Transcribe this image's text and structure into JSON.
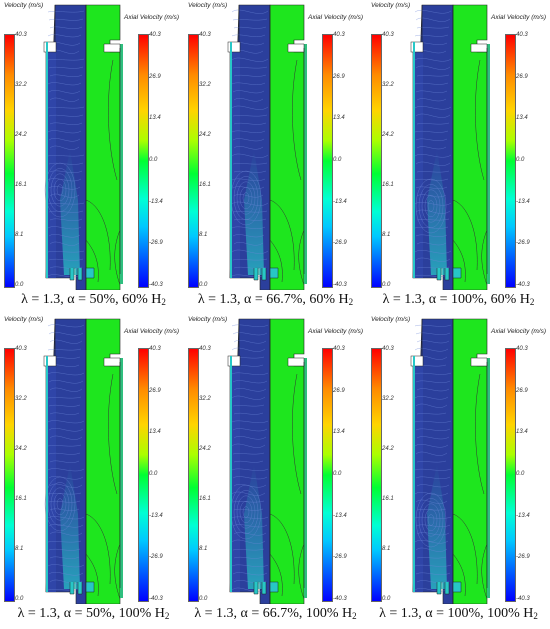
{
  "colorbar_labels": {
    "velocity_title": "Velocity (m/s)",
    "axial_title": "Axial Velocity (m/s)",
    "velocity_ticks": [
      "40.3",
      "32.2",
      "24.2",
      "16.1",
      "8.1",
      "0.0"
    ],
    "axial_ticks": [
      "40.3",
      "26.9",
      "13.4",
      "0.0",
      "-13.4",
      "-26.9",
      "-40.3"
    ]
  },
  "colors": {
    "flow_field_blue": "#2b3f9c",
    "axial_field_green": "#1ee61e",
    "inlet_jet_cyan": "#27c7c7"
  },
  "panels": [
    {
      "caption_main": "λ = 1.3, α = 50%, 60% H",
      "caption_sub": "2"
    },
    {
      "caption_main": "λ = 1.3, α = 66.7%, 60% H",
      "caption_sub": "2"
    },
    {
      "caption_main": "λ = 1.3, α = 100%, 60% H",
      "caption_sub": "2"
    },
    {
      "caption_main": "λ = 1.3, α = 50%, 100% H",
      "caption_sub": "2"
    },
    {
      "caption_main": "λ = 1.3, α = 66.7%, 100% H",
      "caption_sub": "2"
    },
    {
      "caption_main": "λ = 1.3, α = 100%, 100% H",
      "caption_sub": "2"
    }
  ]
}
